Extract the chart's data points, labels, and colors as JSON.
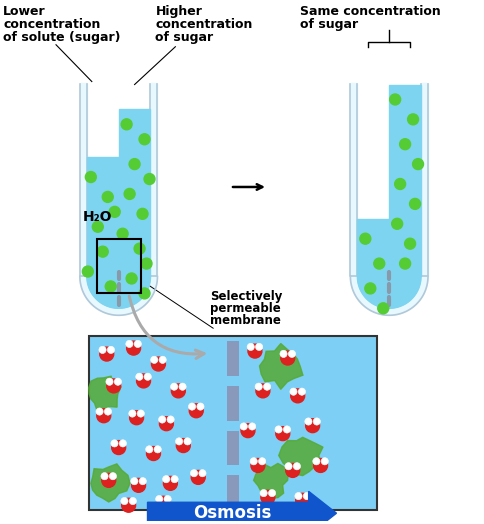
{
  "bg_color": "#ffffff",
  "water_color": "#7dd4f0",
  "tube_glass_color": "#e8f8ff",
  "tube_edge_color": "#b0c8d8",
  "sugar_color": "#55cc33",
  "membrane_color": "#8899aa",
  "arrow_red": "#cc1111",
  "arrow_black": "#111111",
  "osmosis_arrow_color": "#1155cc",
  "label1_line1": "Lower",
  "label1_line2": "concentration",
  "label1_line3": "of solute (sugar)",
  "label2_line1": "Higher",
  "label2_line2": "concentration",
  "label2_line3": "of sugar",
  "label3": "Same concentration\nof sugar",
  "label_membrane": "Selectively\npermeable\nmembrane",
  "label_h2o": "H₂O",
  "label_osmosis": "Osmosis",
  "micro_bg": "#7ecff5",
  "water_red": "#dd2020",
  "water_white": "#ffffff",
  "sugar_green": "#55aa33"
}
